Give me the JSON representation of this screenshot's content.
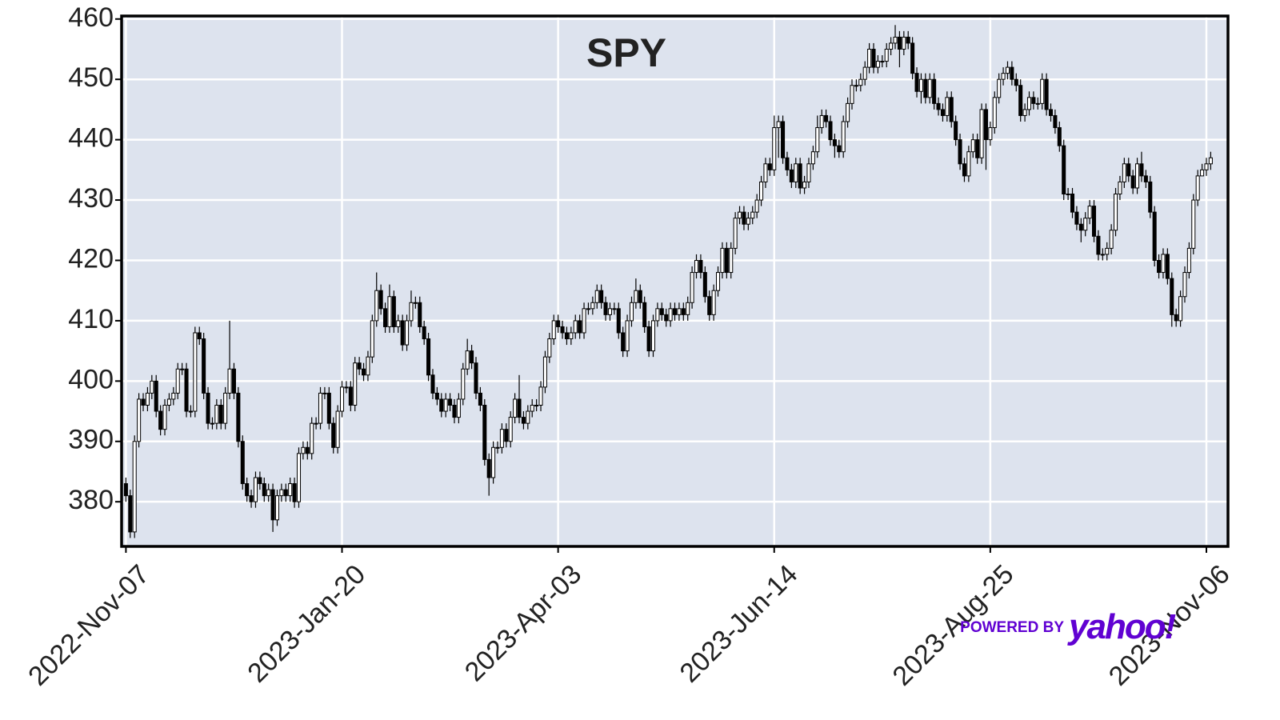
{
  "chart_data": {
    "type": "candlestick",
    "title": "SPY",
    "open": [
      383,
      381,
      375,
      390,
      397,
      396,
      398,
      400,
      395,
      392,
      396,
      397,
      398,
      402,
      402,
      395,
      395,
      408,
      407,
      398,
      393,
      393,
      396,
      393,
      398,
      402,
      398,
      390,
      383,
      381,
      380,
      384,
      383,
      381,
      382,
      377,
      381,
      382,
      381,
      383,
      380,
      388,
      389,
      388,
      393,
      393,
      398,
      398,
      393,
      389,
      395,
      399,
      399,
      396,
      403,
      402,
      401,
      404,
      410,
      415,
      412,
      409,
      414,
      409,
      410,
      406,
      410,
      413,
      413,
      409,
      407,
      401,
      398,
      397,
      395,
      397,
      396,
      394,
      397,
      402,
      405,
      403,
      398,
      396,
      387,
      384,
      389,
      389,
      392,
      390,
      394,
      397,
      394,
      393,
      395,
      396,
      396,
      399,
      404,
      407,
      410,
      409,
      408,
      407,
      408,
      410,
      408,
      412,
      412,
      413,
      415,
      413,
      411,
      412,
      412,
      408,
      405,
      410,
      413,
      415,
      413,
      409,
      405,
      410,
      412,
      411,
      410,
      412,
      411,
      412,
      411,
      413,
      418,
      420,
      418,
      414,
      411,
      415,
      418,
      422,
      418,
      422,
      427,
      428,
      426,
      427,
      428,
      430,
      433,
      436,
      435,
      442,
      443,
      437,
      435,
      433,
      436,
      432,
      433,
      436,
      438,
      442,
      444,
      443,
      440,
      439,
      438,
      443,
      446,
      449,
      449,
      450,
      452,
      455,
      452,
      453,
      453,
      455,
      456,
      457,
      455,
      457,
      456,
      451,
      448,
      450,
      447,
      450,
      446,
      445,
      444,
      447,
      443,
      440,
      436,
      434,
      438,
      440,
      437,
      445,
      440,
      442,
      447,
      450,
      451,
      452,
      450,
      449,
      444,
      445,
      447,
      446,
      446,
      450,
      445,
      444,
      442,
      439,
      431,
      431,
      428,
      426,
      425,
      427,
      429,
      424,
      421,
      421,
      422,
      425,
      431,
      433,
      436,
      434,
      432,
      436,
      434,
      433,
      428,
      420,
      418,
      421,
      417,
      411,
      410,
      414,
      418,
      422,
      430,
      434,
      435,
      436
    ],
    "high": [
      384,
      382,
      391,
      398,
      398,
      399,
      401,
      401,
      396,
      397,
      398,
      399,
      403,
      403,
      403,
      396,
      409,
      409,
      408,
      399,
      394,
      397,
      397,
      399,
      410,
      403,
      399,
      391,
      384,
      382,
      385,
      385,
      384,
      383,
      383,
      382,
      383,
      383,
      384,
      384,
      389,
      390,
      390,
      394,
      394,
      399,
      399,
      399,
      394,
      396,
      400,
      400,
      400,
      404,
      404,
      403,
      405,
      411,
      418,
      416,
      413,
      416,
      415,
      411,
      411,
      411,
      415,
      414,
      414,
      410,
      408,
      402,
      399,
      398,
      398,
      398,
      397,
      398,
      403,
      407,
      406,
      404,
      399,
      397,
      388,
      390,
      390,
      393,
      393,
      395,
      398,
      401,
      395,
      396,
      397,
      397,
      400,
      405,
      408,
      411,
      411,
      410,
      409,
      409,
      411,
      411,
      413,
      413,
      414,
      416,
      416,
      414,
      413,
      413,
      413,
      409,
      411,
      414,
      417,
      416,
      414,
      410,
      411,
      413,
      413,
      412,
      413,
      413,
      413,
      413,
      414,
      419,
      421,
      421,
      419,
      415,
      416,
      419,
      423,
      423,
      423,
      428,
      429,
      429,
      428,
      429,
      431,
      434,
      437,
      437,
      444,
      444,
      444,
      438,
      436,
      437,
      437,
      434,
      437,
      439,
      444,
      445,
      445,
      444,
      441,
      440,
      444,
      447,
      450,
      450,
      451,
      453,
      456,
      456,
      454,
      454,
      456,
      457,
      459,
      458,
      458,
      458,
      457,
      452,
      451,
      451,
      451,
      451,
      447,
      446,
      448,
      448,
      444,
      441,
      437,
      439,
      441,
      441,
      446,
      446,
      443,
      448,
      451,
      452,
      453,
      453,
      451,
      450,
      446,
      448,
      448,
      447,
      451,
      451,
      446,
      445,
      443,
      440,
      432,
      432,
      429,
      427,
      428,
      430,
      430,
      425,
      422,
      423,
      426,
      432,
      434,
      437,
      437,
      435,
      437,
      438,
      435,
      434,
      429,
      421,
      422,
      422,
      418,
      412,
      415,
      419,
      423,
      431,
      435,
      436,
      437,
      438
    ],
    "low": [
      380,
      374,
      374,
      389,
      395,
      395,
      397,
      394,
      391,
      391,
      395,
      396,
      397,
      401,
      394,
      394,
      394,
      406,
      397,
      392,
      392,
      392,
      392,
      392,
      397,
      397,
      389,
      382,
      380,
      379,
      379,
      382,
      380,
      380,
      375,
      376,
      380,
      380,
      380,
      379,
      379,
      387,
      387,
      387,
      392,
      392,
      397,
      392,
      388,
      388,
      394,
      398,
      395,
      395,
      401,
      400,
      400,
      403,
      409,
      411,
      408,
      408,
      408,
      408,
      405,
      405,
      409,
      412,
      408,
      406,
      400,
      397,
      396,
      394,
      394,
      395,
      393,
      393,
      396,
      401,
      402,
      397,
      395,
      386,
      381,
      383,
      388,
      388,
      389,
      389,
      393,
      393,
      392,
      392,
      394,
      395,
      395,
      398,
      403,
      406,
      408,
      407,
      406,
      406,
      407,
      407,
      407,
      411,
      411,
      412,
      412,
      410,
      410,
      411,
      407,
      404,
      404,
      409,
      412,
      412,
      408,
      404,
      404,
      409,
      410,
      409,
      409,
      410,
      410,
      410,
      410,
      412,
      417,
      417,
      413,
      410,
      410,
      414,
      417,
      417,
      417,
      421,
      426,
      425,
      425,
      426,
      427,
      429,
      432,
      434,
      434,
      437,
      436,
      434,
      432,
      432,
      431,
      431,
      432,
      435,
      437,
      441,
      442,
      439,
      437,
      437,
      437,
      442,
      445,
      448,
      448,
      449,
      451,
      451,
      451,
      452,
      452,
      454,
      455,
      452,
      454,
      455,
      450,
      447,
      446,
      446,
      446,
      445,
      444,
      443,
      443,
      442,
      439,
      435,
      433,
      433,
      437,
      436,
      436,
      435,
      439,
      441,
      446,
      449,
      450,
      449,
      448,
      443,
      443,
      444,
      445,
      445,
      445,
      444,
      443,
      441,
      438,
      430,
      430,
      427,
      425,
      423,
      424,
      426,
      423,
      420,
      420,
      420,
      421,
      424,
      430,
      432,
      433,
      431,
      431,
      433,
      432,
      427,
      419,
      417,
      417,
      416,
      409,
      409,
      409,
      413,
      417,
      421,
      429,
      434,
      434,
      435
    ],
    "close": [
      381,
      375,
      390,
      397,
      396,
      398,
      400,
      395,
      392,
      396,
      397,
      398,
      402,
      402,
      395,
      395,
      408,
      407,
      398,
      393,
      393,
      396,
      393,
      398,
      402,
      398,
      390,
      383,
      381,
      380,
      384,
      383,
      381,
      382,
      377,
      381,
      382,
      381,
      383,
      380,
      388,
      389,
      388,
      393,
      393,
      398,
      398,
      393,
      389,
      395,
      399,
      399,
      396,
      403,
      402,
      401,
      404,
      410,
      415,
      412,
      409,
      414,
      409,
      410,
      406,
      410,
      413,
      413,
      409,
      407,
      401,
      398,
      397,
      395,
      397,
      396,
      394,
      397,
      402,
      405,
      403,
      398,
      396,
      387,
      384,
      389,
      389,
      392,
      390,
      394,
      397,
      394,
      393,
      395,
      396,
      396,
      399,
      404,
      407,
      410,
      409,
      408,
      407,
      408,
      410,
      408,
      412,
      412,
      413,
      415,
      413,
      411,
      412,
      412,
      408,
      405,
      410,
      413,
      415,
      413,
      409,
      405,
      410,
      412,
      411,
      410,
      412,
      411,
      412,
      411,
      413,
      418,
      420,
      418,
      414,
      411,
      415,
      418,
      422,
      418,
      422,
      427,
      428,
      426,
      427,
      428,
      430,
      433,
      436,
      435,
      442,
      443,
      437,
      435,
      433,
      436,
      432,
      433,
      436,
      438,
      442,
      444,
      443,
      440,
      439,
      438,
      443,
      446,
      449,
      449,
      450,
      452,
      455,
      452,
      453,
      453,
      455,
      456,
      457,
      455,
      457,
      456,
      451,
      448,
      450,
      447,
      450,
      446,
      445,
      444,
      447,
      443,
      440,
      436,
      434,
      438,
      440,
      437,
      445,
      440,
      442,
      447,
      450,
      451,
      452,
      450,
      449,
      444,
      445,
      447,
      446,
      446,
      450,
      445,
      444,
      442,
      439,
      431,
      431,
      428,
      426,
      425,
      427,
      429,
      424,
      421,
      421,
      422,
      425,
      431,
      433,
      436,
      434,
      432,
      436,
      434,
      433,
      428,
      420,
      418,
      421,
      417,
      411,
      410,
      414,
      418,
      422,
      430,
      434,
      435,
      436,
      437
    ],
    "up_color": "#ffffff",
    "down_color": "#000000",
    "edge_color": "#000000",
    "xlim": [
      -1,
      255
    ],
    "xticks": [
      {
        "value": 0,
        "label": "2022-Nov-07"
      },
      {
        "value": 50,
        "label": "2023-Jan-20"
      },
      {
        "value": 100,
        "label": "2023-Apr-03"
      },
      {
        "value": 150,
        "label": "2023-Jun-14"
      },
      {
        "value": 200,
        "label": "2023-Aug-25"
      },
      {
        "value": 250,
        "label": "2023-Nov-06"
      }
    ],
    "ylim": [
      372.6,
      460.5
    ],
    "yticks": [
      380,
      390,
      400,
      410,
      420,
      430,
      440,
      450,
      460
    ],
    "grid": true
  },
  "attribution": {
    "prefix": "POWERED BY",
    "brand": "yahoo!"
  }
}
